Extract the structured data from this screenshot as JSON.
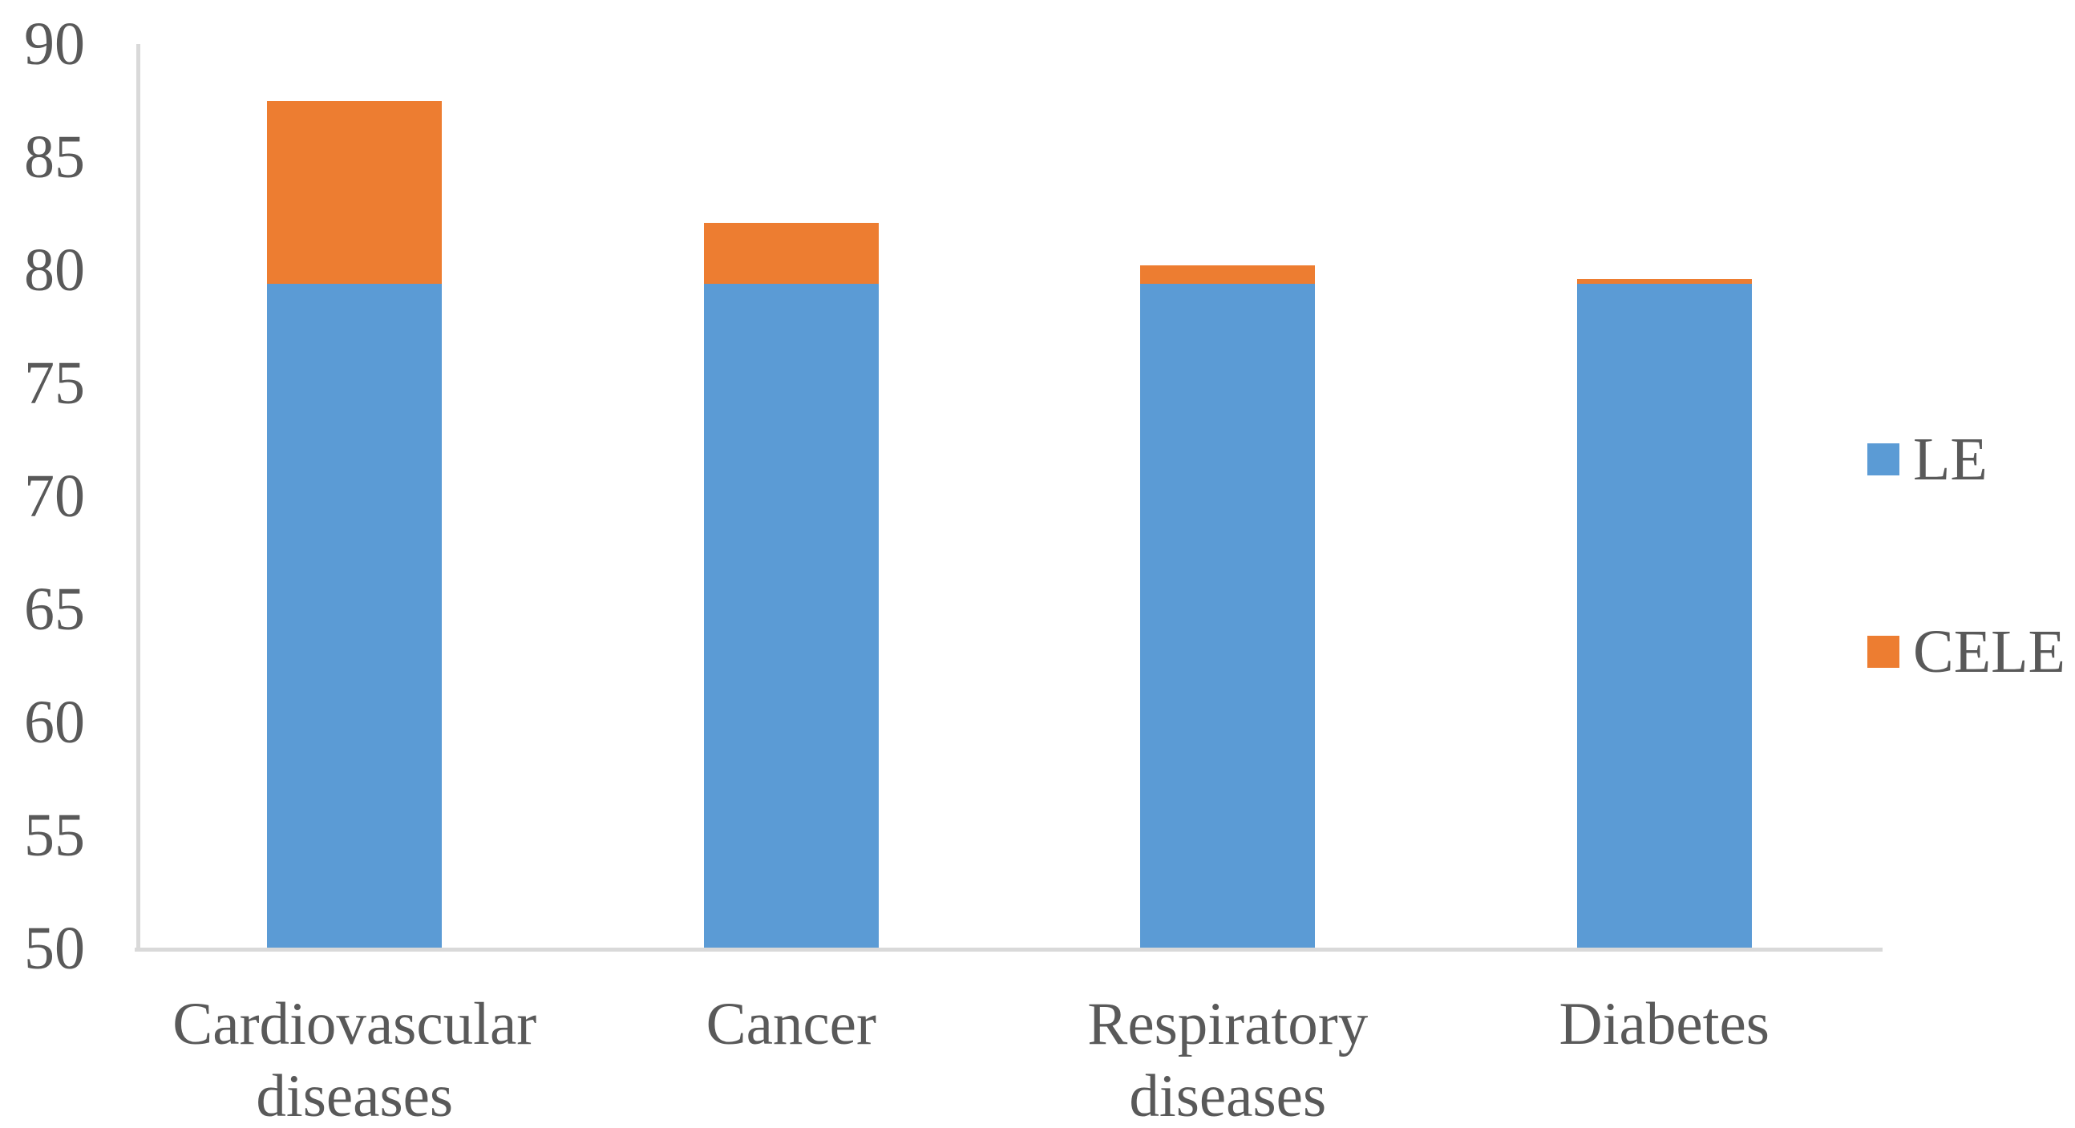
{
  "chart_data": {
    "type": "bar",
    "stacked": true,
    "title": "",
    "xlabel": "",
    "ylabel": "",
    "categories": [
      "Cardiovascular\ndiseases",
      "Cancer",
      "Respiratory\ndiseases",
      "Diabetes"
    ],
    "series": [
      {
        "name": "LE",
        "color": "#5B9BD5",
        "values": [
          79.4,
          79.4,
          79.4,
          79.4
        ]
      },
      {
        "name": "CELE",
        "color": "#ED7D31",
        "values": [
          8.1,
          2.7,
          0.8,
          0.2
        ]
      }
    ],
    "stacked_totals": [
      87.5,
      82.1,
      80.2,
      79.6
    ],
    "ylim": [
      50,
      90
    ],
    "yticks": [
      50,
      55,
      60,
      65,
      70,
      75,
      80,
      85,
      90
    ],
    "grid": false,
    "legend_position": "right"
  },
  "legend": {
    "items": [
      {
        "label": "LE",
        "color": "#5B9BD5"
      },
      {
        "label": "CELE",
        "color": "#ED7D31"
      }
    ]
  },
  "colors": {
    "axis_line": "#D9D9D9",
    "text": "#595959",
    "background": "#FFFFFF"
  }
}
